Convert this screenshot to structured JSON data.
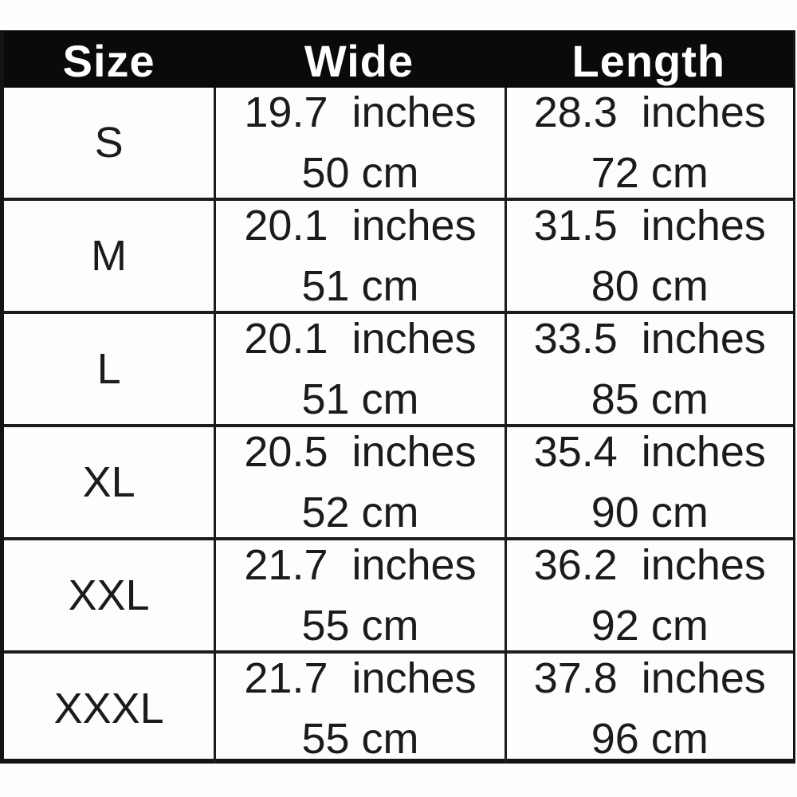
{
  "colors": {
    "header_bg": "#0a0a0a",
    "header_text": "#ffffff",
    "body_text": "#1b1b1b",
    "border": "#1c1c1c",
    "background": "#fdfdfd"
  },
  "table": {
    "columns": [
      "Size",
      "Wide",
      "Length"
    ],
    "rows": [
      {
        "size": "S",
        "wide_inches": "19.7  inches",
        "wide_cm": "50 cm",
        "length_inches": "28.3  inches",
        "length_cm": "72 cm"
      },
      {
        "size": "M",
        "wide_inches": "20.1  inches",
        "wide_cm": "51 cm",
        "length_inches": "31.5  inches",
        "length_cm": "80 cm"
      },
      {
        "size": "L",
        "wide_inches": "20.1  inches",
        "wide_cm": "51 cm",
        "length_inches": "33.5  inches",
        "length_cm": "85 cm"
      },
      {
        "size": "XL",
        "wide_inches": "20.5  inches",
        "wide_cm": "52 cm",
        "length_inches": "35.4  inches",
        "length_cm": "90 cm"
      },
      {
        "size": "XXL",
        "wide_inches": "21.7  inches",
        "wide_cm": "55 cm",
        "length_inches": "36.2  inches",
        "length_cm": "92 cm"
      },
      {
        "size": "XXXL",
        "wide_inches": "21.7  inches",
        "wide_cm": "55 cm",
        "length_inches": "37.8  inches",
        "length_cm": "96 cm"
      }
    ]
  }
}
